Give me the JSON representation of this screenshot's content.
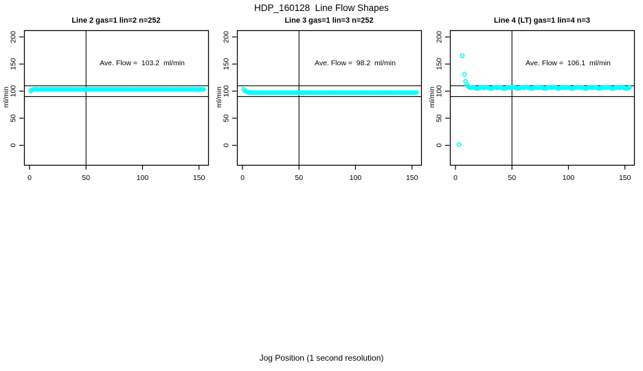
{
  "title": "HDP_160128  Line Flow Shapes",
  "xlabel": "Jog Position (1 second resolution)",
  "ylabel": "ml/min",
  "colors": {
    "points": "#00ffff",
    "axis": "#000000",
    "background": "#ffffff"
  },
  "axes": {
    "x_ticks": [
      0,
      50,
      100,
      150
    ],
    "y_ticks": [
      0,
      50,
      100,
      150,
      200
    ],
    "ref_lines_horizontal": [
      90,
      110
    ],
    "ref_line_vertical": 50
  },
  "chart_data": [
    {
      "type": "scatter",
      "title": "Line 2 gas=1 lin=2 n=252",
      "annotation": "Ave. Flow =  103.2  ml/min",
      "ave_flow_ml_min": 103.2,
      "n": 252,
      "xlabel": "Jog Position (1 second resolution)",
      "ylabel": "ml/min",
      "x_ticks": [
        0,
        50,
        100,
        150
      ],
      "y_ticks": [
        0,
        50,
        100,
        150,
        200
      ],
      "xlim": [
        -5,
        159
      ],
      "ylim": [
        -36,
        212
      ],
      "ref_h": [
        90,
        110
      ],
      "ref_v": 50,
      "legend": null,
      "grid": false,
      "outliers": [],
      "segments": [
        {
          "x_start": 1,
          "x_step": 1,
          "y": [
            100.4,
            102.2,
            102.9,
            103.2,
            103.4,
            103.1,
            103.3,
            103.2,
            103.0,
            103.3,
            103.2,
            103.4,
            103.1,
            103.2,
            103.4,
            103.1,
            103.3,
            103.2,
            103.0,
            103.3,
            103.2,
            103.4,
            103.1,
            103.2,
            103.4,
            103.1,
            103.3,
            103.2,
            103.0,
            103.3,
            103.2,
            103.4,
            103.1,
            103.2,
            103.4,
            103.1,
            103.3,
            103.2,
            103.0,
            103.3,
            103.2,
            103.4,
            103.1,
            103.2,
            103.4,
            103.1,
            103.3,
            103.2,
            103.0,
            103.3,
            103.2,
            103.4,
            103.1,
            103.2,
            103.4,
            103.1,
            103.3,
            103.2,
            103.0,
            103.3,
            103.2,
            103.4,
            103.1,
            103.2,
            103.4,
            103.1,
            103.3,
            103.2,
            103.0,
            103.3,
            103.2,
            103.4,
            103.1,
            103.2,
            103.4,
            103.1,
            103.3,
            103.2,
            103.0,
            103.3,
            103.2,
            103.4,
            103.1,
            103.2,
            103.4,
            103.1,
            103.3,
            103.2,
            103.0,
            103.3,
            103.2,
            103.4,
            103.1,
            103.2,
            103.4,
            103.1,
            103.3,
            103.2,
            103.0,
            103.3,
            103.2,
            103.4,
            103.1,
            103.2,
            103.4,
            103.1,
            103.3,
            103.2,
            103.0,
            103.3,
            103.2,
            103.4,
            103.1,
            103.2,
            103.4,
            103.1,
            103.3,
            103.2,
            103.0,
            103.3,
            103.2,
            103.4,
            103.1,
            103.2,
            103.4,
            103.1,
            103.3,
            103.2,
            103.0,
            103.3,
            103.2,
            103.4,
            103.1,
            103.2,
            103.4,
            103.1,
            103.3,
            103.2,
            103.0,
            103.3,
            103.2,
            103.4,
            103.1,
            103.2,
            103.4,
            103.1,
            103.3,
            103.2,
            103.0,
            103.3,
            103.2,
            103.4,
            103.1,
            103.2
          ]
        }
      ]
    },
    {
      "type": "scatter",
      "title": "Line 3 gas=1 lin=3 n=252",
      "annotation": "Ave. Flow =  98.2  ml/min",
      "ave_flow_ml_min": 98.2,
      "n": 252,
      "xlabel": "Jog Position (1 second resolution)",
      "ylabel": "ml/min",
      "x_ticks": [
        0,
        50,
        100,
        150
      ],
      "y_ticks": [
        0,
        50,
        100,
        150,
        200
      ],
      "xlim": [
        -5,
        159
      ],
      "ylim": [
        -36,
        212
      ],
      "ref_h": [
        90,
        110
      ],
      "ref_v": 50,
      "legend": null,
      "grid": false,
      "outliers": [],
      "segments": [
        {
          "x_start": 1,
          "x_step": 1,
          "y": [
            103.2,
            100.8,
            99.3,
            98.4,
            97.9,
            97.6,
            97.4,
            97.2,
            97.4,
            97.1,
            97.3,
            97.2,
            97.0,
            97.3,
            97.1,
            97.4,
            97.2,
            97.2,
            97.4,
            97.1,
            97.3,
            97.2,
            97.0,
            97.3,
            97.1,
            97.4,
            97.2,
            97.2,
            97.4,
            97.1,
            97.3,
            97.2,
            97.0,
            97.3,
            97.1,
            97.4,
            97.2,
            97.2,
            97.4,
            97.1,
            97.3,
            97.2,
            97.0,
            97.3,
            97.1,
            97.4,
            97.2,
            97.2,
            97.4,
            97.1,
            97.3,
            97.2,
            97.0,
            97.3,
            97.1,
            97.4,
            97.2,
            97.2,
            97.4,
            97.1,
            97.3,
            97.2,
            97.0,
            97.3,
            97.1,
            97.4,
            97.2,
            97.2,
            97.4,
            97.1,
            97.3,
            97.2,
            97.0,
            97.3,
            97.1,
            97.4,
            97.2,
            97.2,
            97.4,
            97.1,
            97.3,
            97.2,
            97.0,
            97.3,
            97.1,
            97.4,
            97.2,
            97.2,
            97.4,
            97.1,
            97.3,
            97.2,
            97.0,
            97.3,
            97.1,
            97.4,
            97.2,
            97.2,
            97.4,
            97.1,
            97.3,
            97.2,
            97.0,
            97.3,
            97.1,
            97.4,
            97.2,
            97.2,
            97.4,
            97.1,
            97.3,
            97.2,
            97.0,
            97.3,
            97.1,
            97.4,
            97.2,
            97.2,
            97.4,
            97.1,
            97.3,
            97.2,
            97.0,
            97.3,
            97.1,
            97.4,
            97.2,
            97.2,
            97.4,
            97.1,
            97.3,
            97.2,
            97.0,
            97.3,
            97.1,
            97.4,
            97.2,
            97.2,
            97.4,
            97.1,
            97.3,
            97.2,
            97.0,
            97.3,
            97.1,
            97.4,
            97.2,
            97.2,
            97.4,
            97.1,
            97.3,
            97.2,
            97.0,
            97.3
          ]
        }
      ]
    },
    {
      "type": "scatter",
      "title": "Line 4 (LT) gas=1 lin=4 n=3",
      "annotation": "Ave. Flow =  106.1  ml/min",
      "ave_flow_ml_min": 106.1,
      "n": 3,
      "xlabel": "Jog Position (1 second resolution)",
      "ylabel": "ml/min",
      "x_ticks": [
        0,
        50,
        100,
        150
      ],
      "y_ticks": [
        0,
        50,
        100,
        150,
        200
      ],
      "xlim": [
        -5,
        159
      ],
      "ylim": [
        -36,
        212
      ],
      "ref_h": [
        90,
        110
      ],
      "ref_v": 50,
      "legend": null,
      "grid": false,
      "outliers": [
        [
          3,
          1.5
        ],
        [
          6,
          165.3
        ],
        [
          8,
          131.0
        ]
      ],
      "segments": [
        {
          "x_start": 9,
          "x_step": 1,
          "y": [
            118.0,
            112.0,
            109.3,
            107.8,
            107.0,
            106.8,
            107.3,
            107.0,
            106.2,
            105.4,
            104.9,
            105.2,
            105.9,
            106.6,
            107.2,
            106.9,
            106.1,
            106.8,
            107.3,
            107.0,
            106.2,
            105.4,
            104.9,
            105.2,
            105.9,
            106.6,
            107.2,
            106.9,
            106.1,
            106.8,
            107.3,
            107.0,
            106.2,
            105.4,
            104.9,
            105.2,
            105.9,
            106.6,
            107.2,
            106.9,
            106.1,
            106.8,
            107.3,
            107.0,
            106.2,
            105.4,
            104.9,
            105.2,
            105.9,
            106.6,
            107.2,
            106.9,
            106.1,
            106.8,
            107.3,
            107.0,
            106.2,
            105.4,
            104.9,
            105.2,
            105.9,
            106.6,
            107.2,
            106.9,
            106.1,
            106.8,
            107.3,
            107.0,
            106.2,
            105.4,
            104.9,
            105.2,
            105.9,
            106.6,
            107.2,
            106.9,
            106.1,
            106.8,
            107.3,
            107.0,
            106.2,
            105.4,
            104.9,
            105.2,
            105.9,
            106.6,
            107.2,
            106.9,
            106.1,
            106.8,
            107.3,
            107.0,
            106.2,
            105.4,
            104.9,
            105.2,
            105.9,
            106.6,
            107.2,
            106.9,
            106.1,
            106.8,
            107.3,
            107.0,
            106.2,
            105.4,
            104.9,
            105.2,
            105.9,
            106.6,
            107.2,
            106.9,
            106.1,
            106.8,
            107.3,
            107.0,
            106.2,
            105.4,
            104.9,
            105.2,
            105.9,
            106.6,
            107.2,
            106.9,
            106.1,
            106.8,
            107.3,
            107.0,
            106.2,
            105.4,
            104.9,
            105.2,
            105.9,
            106.6,
            107.2,
            106.9,
            106.1,
            106.8,
            107.3,
            107.0,
            106.2,
            105.4,
            104.9,
            105.2,
            105.9,
            106.6
          ]
        }
      ]
    }
  ]
}
